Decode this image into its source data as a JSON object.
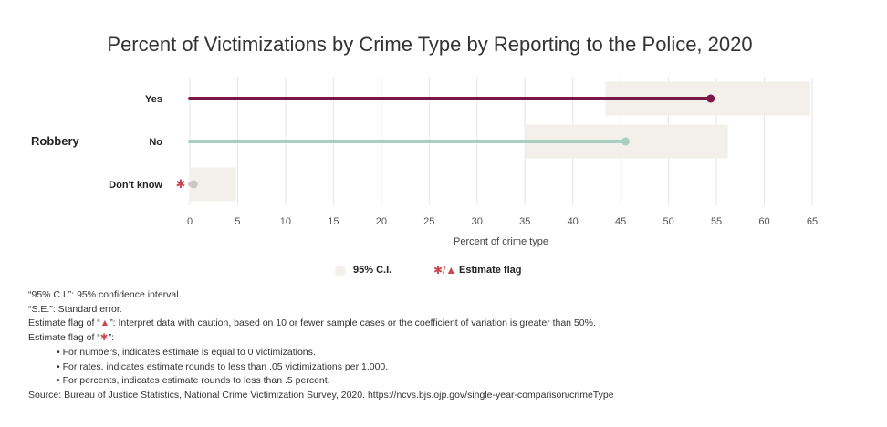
{
  "title": "Percent of Victimizations by Crime Type by Reporting to the Police, 2020",
  "chart_data": {
    "type": "dot-range",
    "group": "Robbery",
    "categories": [
      "Yes",
      "No",
      "Don't know"
    ],
    "values": [
      54.4,
      45.5,
      0.4
    ],
    "ci_low": [
      43.4,
      35.0,
      0.0
    ],
    "ci_high": [
      64.8,
      56.2,
      4.8
    ],
    "flags": [
      "",
      "",
      "*"
    ],
    "colors": [
      "#7a1748",
      "#a8cfc0",
      "#c9c6c4"
    ],
    "ci_color": "#f3efeb",
    "flag_color": "#c8474e",
    "xlabel": "Percent of crime type",
    "xlim": [
      0,
      65
    ],
    "xticks": [
      0,
      5,
      10,
      15,
      20,
      25,
      30,
      35,
      40,
      45,
      50,
      55,
      60,
      65
    ],
    "grid": true
  },
  "legend": {
    "ci_label": "95% C.I.",
    "flag_symbols": "✱/▲",
    "flag_label": "Estimate flag"
  },
  "notes": {
    "ci": "“95% C.I.”: 95% confidence interval.",
    "se": "“S.E.”: Standard error.",
    "triangle_pre": "Estimate flag of “",
    "triangle_sym": "▲",
    "triangle_post": "”: Interpret data with caution, based on 10 or fewer sample cases or the coefficient of variation is greater than 50%.",
    "asterisk_pre": "Estimate flag of “",
    "asterisk_sym": "✱",
    "asterisk_post": "”:",
    "bullets": [
      "• For numbers, indicates estimate is equal to 0 victimizations.",
      "• For rates, indicates estimate rounds to less than .05 victimizations per 1,000.",
      "• For percents, indicates estimate rounds to less than .5 percent."
    ],
    "source": "Source: Bureau of Justice Statistics, National Crime Victimization Survey, 2020. https://ncvs.bjs.ojp.gov/single-year-comparison/crimeType"
  }
}
